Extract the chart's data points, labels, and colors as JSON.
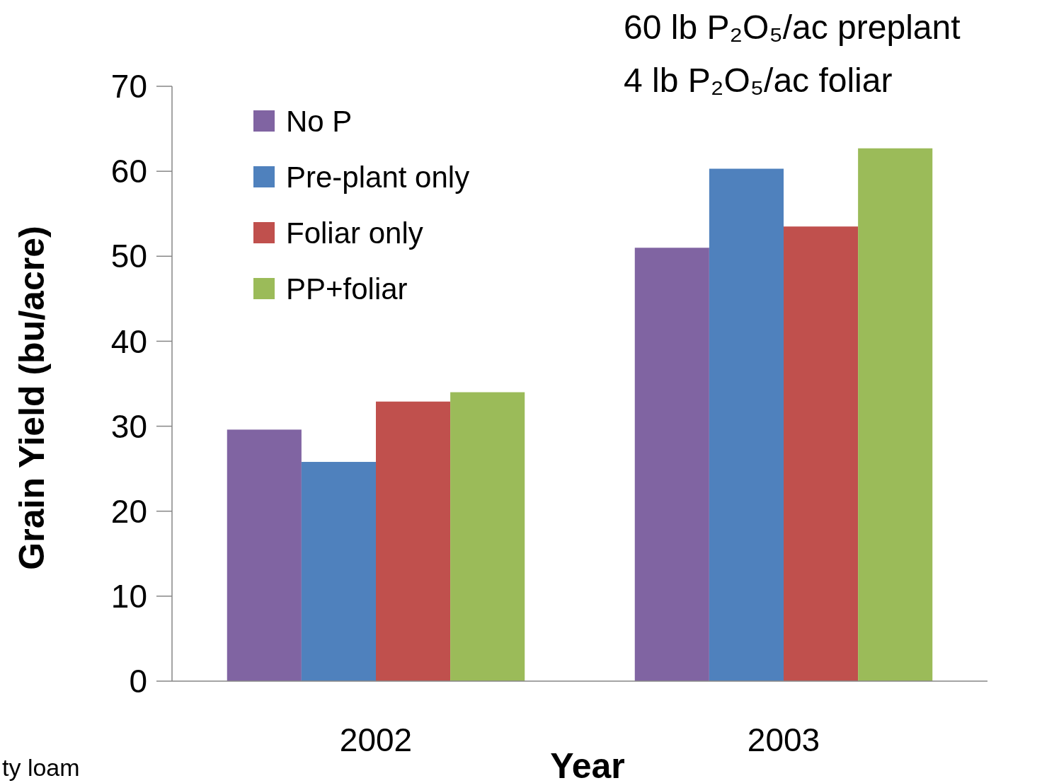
{
  "chart_data": {
    "type": "bar",
    "xlabel": "Year",
    "ylabel": "Grain Yield (bu/acre)",
    "categories": [
      "2002",
      "2003"
    ],
    "series": [
      {
        "name": "No P",
        "color": "#8064a2",
        "values": [
          29.6,
          51.0
        ]
      },
      {
        "name": "Pre-plant only",
        "color": "#4f81bd",
        "values": [
          25.8,
          60.3
        ]
      },
      {
        "name": "Foliar only",
        "color": "#c0504d",
        "values": [
          32.9,
          53.5
        ]
      },
      {
        "name": "PP+foliar",
        "color": "#9bbb59",
        "values": [
          34.0,
          62.7
        ]
      }
    ],
    "ylim": [
      0,
      70
    ],
    "yticks": [
      0,
      10,
      20,
      30,
      40,
      50,
      60,
      70
    ],
    "legend": "top left",
    "annotations": [
      "60 lb P₂O₅/ac preplant",
      "4 lb P₂O₅/ac foliar",
      "ty loam"
    ]
  }
}
